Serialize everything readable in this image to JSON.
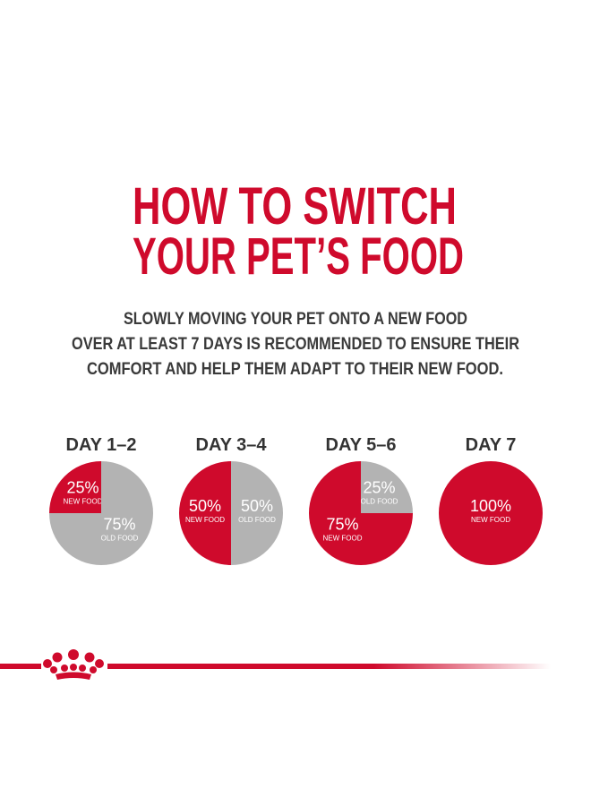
{
  "header": {
    "title": [
      "HOW TO SWITCH",
      "YOUR PET’S FOOD"
    ],
    "text": [
      "SLOWLY MOVING YOUR PET ONTO A NEW FOOD",
      "OVER AT LEAST 7 DAYS IS RECOMMENDED TO ENSURE THEIR",
      "COMFORT AND HELP THEM ADAPT TO THEIR NEW FOOD."
    ]
  },
  "chart_data": [
    {
      "type": "pie",
      "title": "DAY 1–2",
      "categories": [
        "NEW FOOD",
        "OLD FOOD"
      ],
      "values": [
        25,
        75
      ],
      "value_labels": [
        "25%",
        "75%"
      ],
      "colors": [
        "#cf0a2c",
        "#b3b3b3"
      ]
    },
    {
      "type": "pie",
      "title": "DAY 3–4",
      "categories": [
        "NEW FOOD",
        "OLD FOOD"
      ],
      "values": [
        50,
        50
      ],
      "value_labels": [
        "50%",
        "50%"
      ],
      "colors": [
        "#cf0a2c",
        "#b3b3b3"
      ]
    },
    {
      "type": "pie",
      "title": "DAY 5–6",
      "categories": [
        "NEW FOOD",
        "OLD FOOD"
      ],
      "values": [
        75,
        25
      ],
      "value_labels": [
        "75%",
        "25%"
      ],
      "colors": [
        "#cf0a2c",
        "#b3b3b3"
      ]
    },
    {
      "type": "pie",
      "title": "DAY 7",
      "categories": [
        "NEW FOOD"
      ],
      "values": [
        100
      ],
      "value_labels": [
        "100%"
      ],
      "colors": [
        "#cf0a2c"
      ]
    }
  ]
}
